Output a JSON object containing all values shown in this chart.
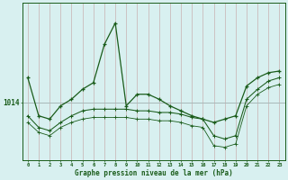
{
  "xlabel": "Graphe pression niveau de la mer (hPa)",
  "background_color": "#d8f0f0",
  "vgrid_color": "#c8b0b0",
  "hgrid_color": "#a8b8b8",
  "line_color": "#1a5c1a",
  "xtick_labels": [
    "0",
    "1",
    "2",
    "3",
    "4",
    "5",
    "6",
    "7",
    "8",
    "9",
    "10",
    "11",
    "12",
    "13",
    "14",
    "15",
    "16",
    "17",
    "18",
    "19",
    "20",
    "21",
    "22",
    "23"
  ],
  "ytick_value": 1014,
  "line1": [
    1015.5,
    1013.2,
    1013.0,
    1013.8,
    1014.2,
    1014.8,
    1015.2,
    1017.5,
    1018.8,
    1013.8,
    1014.5,
    1014.5,
    1014.2,
    1013.8,
    1013.5,
    1013.2,
    1013.0,
    1012.8,
    1013.0,
    1013.2,
    1015.0,
    1015.5,
    1015.8,
    1015.9
  ],
  "line2": [
    1013.2,
    1012.5,
    1012.3,
    1012.8,
    1013.2,
    1013.5,
    1013.6,
    1013.6,
    1013.6,
    1013.6,
    1013.5,
    1013.5,
    1013.4,
    1013.4,
    1013.3,
    1013.1,
    1013.0,
    1012.0,
    1011.8,
    1012.0,
    1014.2,
    1014.8,
    1015.3,
    1015.5
  ],
  "line3": [
    1012.8,
    1012.2,
    1012.0,
    1012.5,
    1012.8,
    1013.0,
    1013.1,
    1013.1,
    1013.1,
    1013.1,
    1013.0,
    1013.0,
    1012.9,
    1012.9,
    1012.8,
    1012.6,
    1012.5,
    1011.4,
    1011.3,
    1011.5,
    1013.8,
    1014.5,
    1014.9,
    1015.1
  ],
  "ylim": [
    1010.5,
    1020.0
  ],
  "xlim": [
    -0.5,
    23.5
  ],
  "figsize": [
    3.2,
    2.0
  ],
  "dpi": 100
}
